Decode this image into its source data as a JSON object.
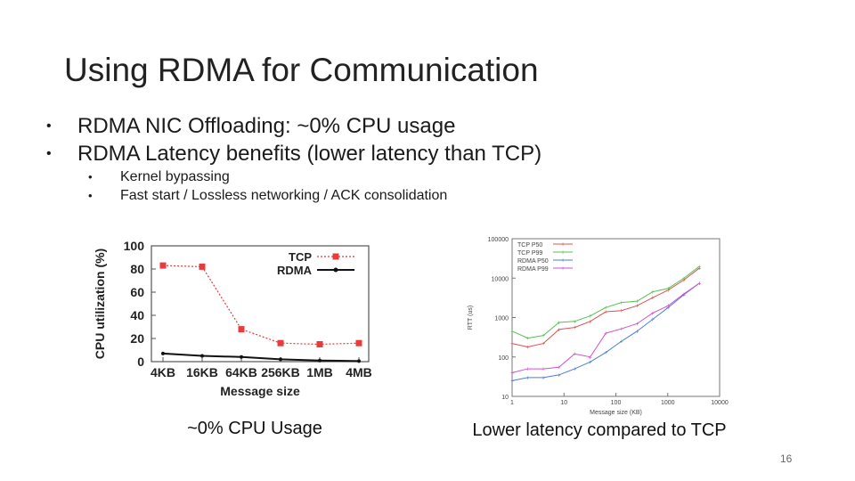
{
  "slide": {
    "title": "Using RDMA for Communication",
    "page_number": "16"
  },
  "bullets": {
    "items": [
      {
        "bullet": "•",
        "text": "RDMA NIC Offloading: ~0% CPU usage"
      },
      {
        "bullet": "•",
        "text": "RDMA Latency benefits (lower latency than TCP)"
      }
    ],
    "sub_items": [
      {
        "bullet": "•",
        "text": "Kernel bypassing"
      },
      {
        "bullet": "•",
        "text": "Fast start / Lossless networking / ACK consolidation"
      }
    ]
  },
  "captions": {
    "left": "~0% CPU Usage",
    "right": "Lower latency compared to TCP"
  },
  "colors": {
    "tcp_left": "#e83b3b",
    "rdma_left": "#111111",
    "tcp_p50": "#e05050",
    "tcp_p99": "#55c055",
    "rdma_p50": "#4a7fd8",
    "rdma_p99": "#d050d0"
  },
  "chart_data": [
    {
      "type": "line",
      "title": "",
      "xlabel": "Message size",
      "ylabel": "CPU utilization (%)",
      "categories": [
        "4KB",
        "16KB",
        "64KB",
        "256KB",
        "1MB",
        "4MB"
      ],
      "yticks": [
        "0",
        "20",
        "40",
        "60",
        "80",
        "100"
      ],
      "ylim": [
        0,
        100
      ],
      "legend_position": "top-right",
      "series": [
        {
          "name": "TCP",
          "values": [
            83,
            82,
            28,
            16,
            15,
            16
          ]
        },
        {
          "name": "RDMA",
          "values": [
            7,
            5,
            4,
            2,
            1,
            0.5
          ]
        }
      ]
    },
    {
      "type": "line",
      "xscale": "log",
      "yscale": "log",
      "xlabel": "Message size (KB)",
      "ylabel": "RTT (us)",
      "xticks": [
        "1",
        "10",
        "100",
        "1000",
        "10000"
      ],
      "yticks": [
        "10",
        "100",
        "1000",
        "10000",
        "100000"
      ],
      "xlim": [
        1,
        10000
      ],
      "ylim": [
        10,
        100000
      ],
      "legend_position": "top-left",
      "x": [
        1,
        2,
        4,
        8,
        16,
        32,
        64,
        128,
        256,
        512,
        1024,
        2048,
        4096
      ],
      "series": [
        {
          "name": "TCP P50",
          "values": [
            220,
            180,
            220,
            500,
            560,
            800,
            1400,
            1500,
            2000,
            3200,
            5000,
            9000,
            18000
          ]
        },
        {
          "name": "TCP P99",
          "values": [
            450,
            300,
            350,
            750,
            800,
            1100,
            1800,
            2400,
            2600,
            4500,
            5500,
            10000,
            20000
          ]
        },
        {
          "name": "RDMA P50",
          "values": [
            25,
            30,
            30,
            35,
            50,
            75,
            130,
            250,
            450,
            900,
            1800,
            3800,
            7500
          ]
        },
        {
          "name": "RDMA P99",
          "values": [
            40,
            50,
            50,
            55,
            120,
            100,
            400,
            520,
            700,
            1300,
            2000,
            4000,
            7500
          ]
        }
      ]
    }
  ]
}
